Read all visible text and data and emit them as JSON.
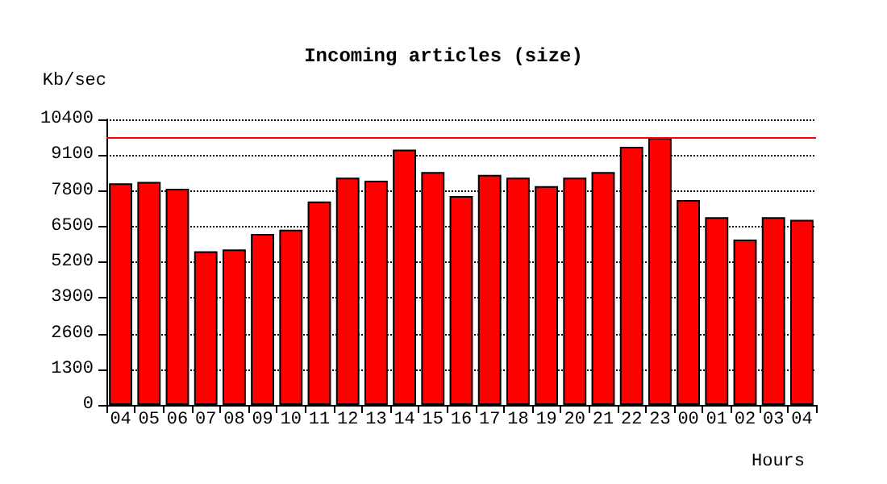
{
  "chart_data": {
    "type": "bar",
    "title": "Incoming articles (size)",
    "ylabel": "Kb/sec",
    "xlabel": "Hours",
    "categories": [
      "04",
      "05",
      "06",
      "07",
      "08",
      "09",
      "10",
      "11",
      "12",
      "13",
      "14",
      "15",
      "16",
      "17",
      "18",
      "19",
      "20",
      "21",
      "22",
      "23",
      "00",
      "01",
      "02",
      "03",
      "04"
    ],
    "values": [
      8070,
      8120,
      7870,
      5600,
      5660,
      6230,
      6380,
      7410,
      8280,
      8170,
      9300,
      8480,
      7610,
      8380,
      8280,
      7970,
      8280,
      8480,
      9400,
      9730,
      7460,
      6840,
      6020,
      6840,
      6740
    ],
    "color": "#ff0000",
    "ylim": [
      0,
      10400
    ],
    "yticks": [
      0,
      1300,
      2600,
      3900,
      5200,
      6500,
      7800,
      9100,
      10400
    ],
    "ref_lines": [
      {
        "axis": "y",
        "value": 9730,
        "color": "#ff0000"
      }
    ],
    "grid": "y"
  }
}
